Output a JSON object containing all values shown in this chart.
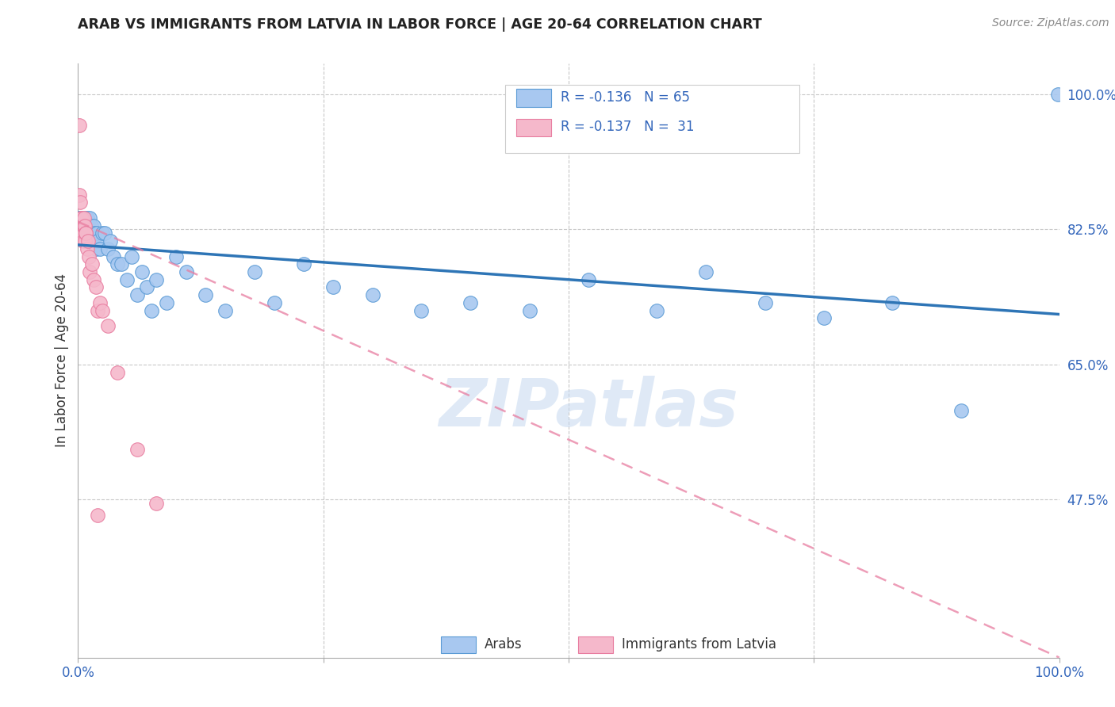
{
  "title": "ARAB VS IMMIGRANTS FROM LATVIA IN LABOR FORCE | AGE 20-64 CORRELATION CHART",
  "source": "Source: ZipAtlas.com",
  "ylabel": "In Labor Force | Age 20-64",
  "xlim": [
    0.0,
    1.0
  ],
  "ylim": [
    0.27,
    1.04
  ],
  "x_ticks": [
    0.0,
    0.25,
    0.5,
    0.75,
    1.0
  ],
  "y_ticks": [
    0.475,
    0.65,
    0.825,
    1.0
  ],
  "y_tick_labels": [
    "47.5%",
    "65.0%",
    "82.5%",
    "100.0%"
  ],
  "blue_dot_color": "#a8c8f0",
  "blue_dot_edge": "#5b9bd5",
  "pink_dot_color": "#f5b8cb",
  "pink_dot_edge": "#e87da0",
  "blue_line_color": "#2e75b6",
  "pink_line_color": "#e87da0",
  "legend_label_blue": "Arabs",
  "legend_label_pink": "Immigrants from Latvia",
  "watermark_text": "ZIPatlas",
  "R_blue": -0.136,
  "N_blue": 65,
  "R_pink": -0.137,
  "N_pink": 31,
  "blue_trend_x0": 0.0,
  "blue_trend_y0": 0.805,
  "blue_trend_x1": 1.0,
  "blue_trend_y1": 0.715,
  "pink_trend_x0": 0.0,
  "pink_trend_y0": 0.835,
  "pink_trend_x1": 1.0,
  "pink_trend_y1": 0.27,
  "blue_x": [
    0.001,
    0.002,
    0.002,
    0.003,
    0.003,
    0.004,
    0.004,
    0.005,
    0.005,
    0.006,
    0.006,
    0.007,
    0.007,
    0.008,
    0.008,
    0.009,
    0.009,
    0.01,
    0.011,
    0.012,
    0.012,
    0.013,
    0.014,
    0.015,
    0.016,
    0.017,
    0.018,
    0.019,
    0.02,
    0.022,
    0.025,
    0.027,
    0.03,
    0.033,
    0.036,
    0.04,
    0.044,
    0.05,
    0.055,
    0.06,
    0.065,
    0.07,
    0.075,
    0.08,
    0.09,
    0.1,
    0.11,
    0.13,
    0.15,
    0.18,
    0.2,
    0.23,
    0.26,
    0.3,
    0.35,
    0.4,
    0.46,
    0.52,
    0.59,
    0.64,
    0.7,
    0.76,
    0.83,
    0.9,
    0.999
  ],
  "blue_y": [
    0.84,
    0.83,
    0.84,
    0.83,
    0.84,
    0.82,
    0.83,
    0.84,
    0.83,
    0.82,
    0.83,
    0.84,
    0.83,
    0.82,
    0.83,
    0.84,
    0.83,
    0.82,
    0.83,
    0.84,
    0.82,
    0.83,
    0.82,
    0.81,
    0.83,
    0.82,
    0.8,
    0.82,
    0.81,
    0.8,
    0.82,
    0.82,
    0.8,
    0.81,
    0.79,
    0.78,
    0.78,
    0.76,
    0.79,
    0.74,
    0.77,
    0.75,
    0.72,
    0.76,
    0.73,
    0.79,
    0.77,
    0.74,
    0.72,
    0.77,
    0.73,
    0.78,
    0.75,
    0.74,
    0.72,
    0.73,
    0.72,
    0.76,
    0.72,
    0.77,
    0.73,
    0.71,
    0.73,
    0.59,
    1.0
  ],
  "pink_x": [
    0.001,
    0.001,
    0.002,
    0.002,
    0.003,
    0.003,
    0.004,
    0.004,
    0.005,
    0.005,
    0.006,
    0.006,
    0.007,
    0.007,
    0.008,
    0.008,
    0.009,
    0.01,
    0.011,
    0.012,
    0.014,
    0.016,
    0.018,
    0.02,
    0.022,
    0.025,
    0.03,
    0.04,
    0.06,
    0.08,
    0.02
  ],
  "pink_y": [
    0.96,
    0.87,
    0.86,
    0.83,
    0.84,
    0.82,
    0.84,
    0.82,
    0.83,
    0.81,
    0.83,
    0.84,
    0.83,
    0.81,
    0.82,
    0.82,
    0.8,
    0.81,
    0.79,
    0.77,
    0.78,
    0.76,
    0.75,
    0.72,
    0.73,
    0.72,
    0.7,
    0.64,
    0.54,
    0.47,
    0.455
  ]
}
